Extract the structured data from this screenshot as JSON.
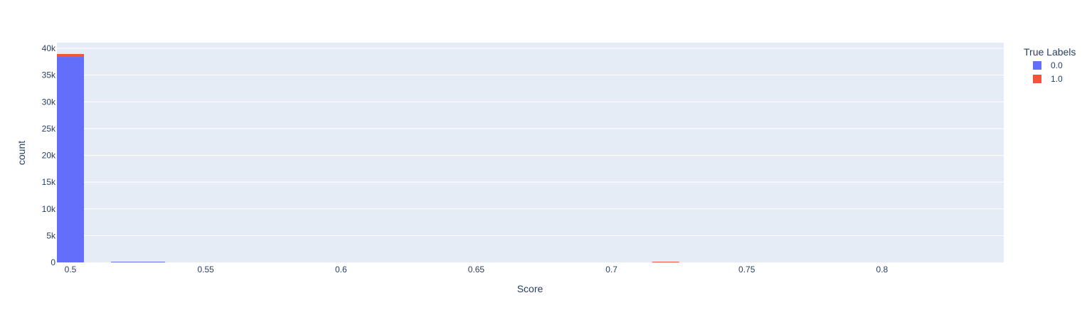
{
  "chart_data": {
    "type": "bar",
    "barmode": "stack",
    "histogram": true,
    "xlabel": "Score",
    "ylabel": "count",
    "x_ticks": [
      0.5,
      0.55,
      0.6,
      0.65,
      0.7,
      0.75,
      0.8
    ],
    "x_tick_labels": [
      "0.5",
      "0.55",
      "0.6",
      "0.65",
      "0.7",
      "0.75",
      "0.8"
    ],
    "xlim": [
      0.495,
      0.845
    ],
    "y_ticks": [
      0,
      5000,
      10000,
      15000,
      20000,
      25000,
      30000,
      35000,
      40000
    ],
    "y_tick_labels": [
      "0",
      "5k",
      "10k",
      "15k",
      "20k",
      "25k",
      "30k",
      "35k",
      "40k"
    ],
    "ylim": [
      0,
      40000
    ],
    "grid": true,
    "legend_title": "True Labels",
    "legend_position": "top-right",
    "bin_width": 0.01,
    "series": [
      {
        "name": "0.0",
        "color": "#636efa",
        "bins": [
          {
            "x0": 0.495,
            "x1": 0.505,
            "value": 38400
          },
          {
            "x0": 0.515,
            "x1": 0.525,
            "value": 60
          },
          {
            "x0": 0.525,
            "x1": 0.535,
            "value": 60
          }
        ]
      },
      {
        "name": "1.0",
        "color": "#ef553b",
        "bins": [
          {
            "x0": 0.495,
            "x1": 0.505,
            "value": 550
          },
          {
            "x0": 0.715,
            "x1": 0.725,
            "value": 40
          }
        ]
      }
    ]
  }
}
